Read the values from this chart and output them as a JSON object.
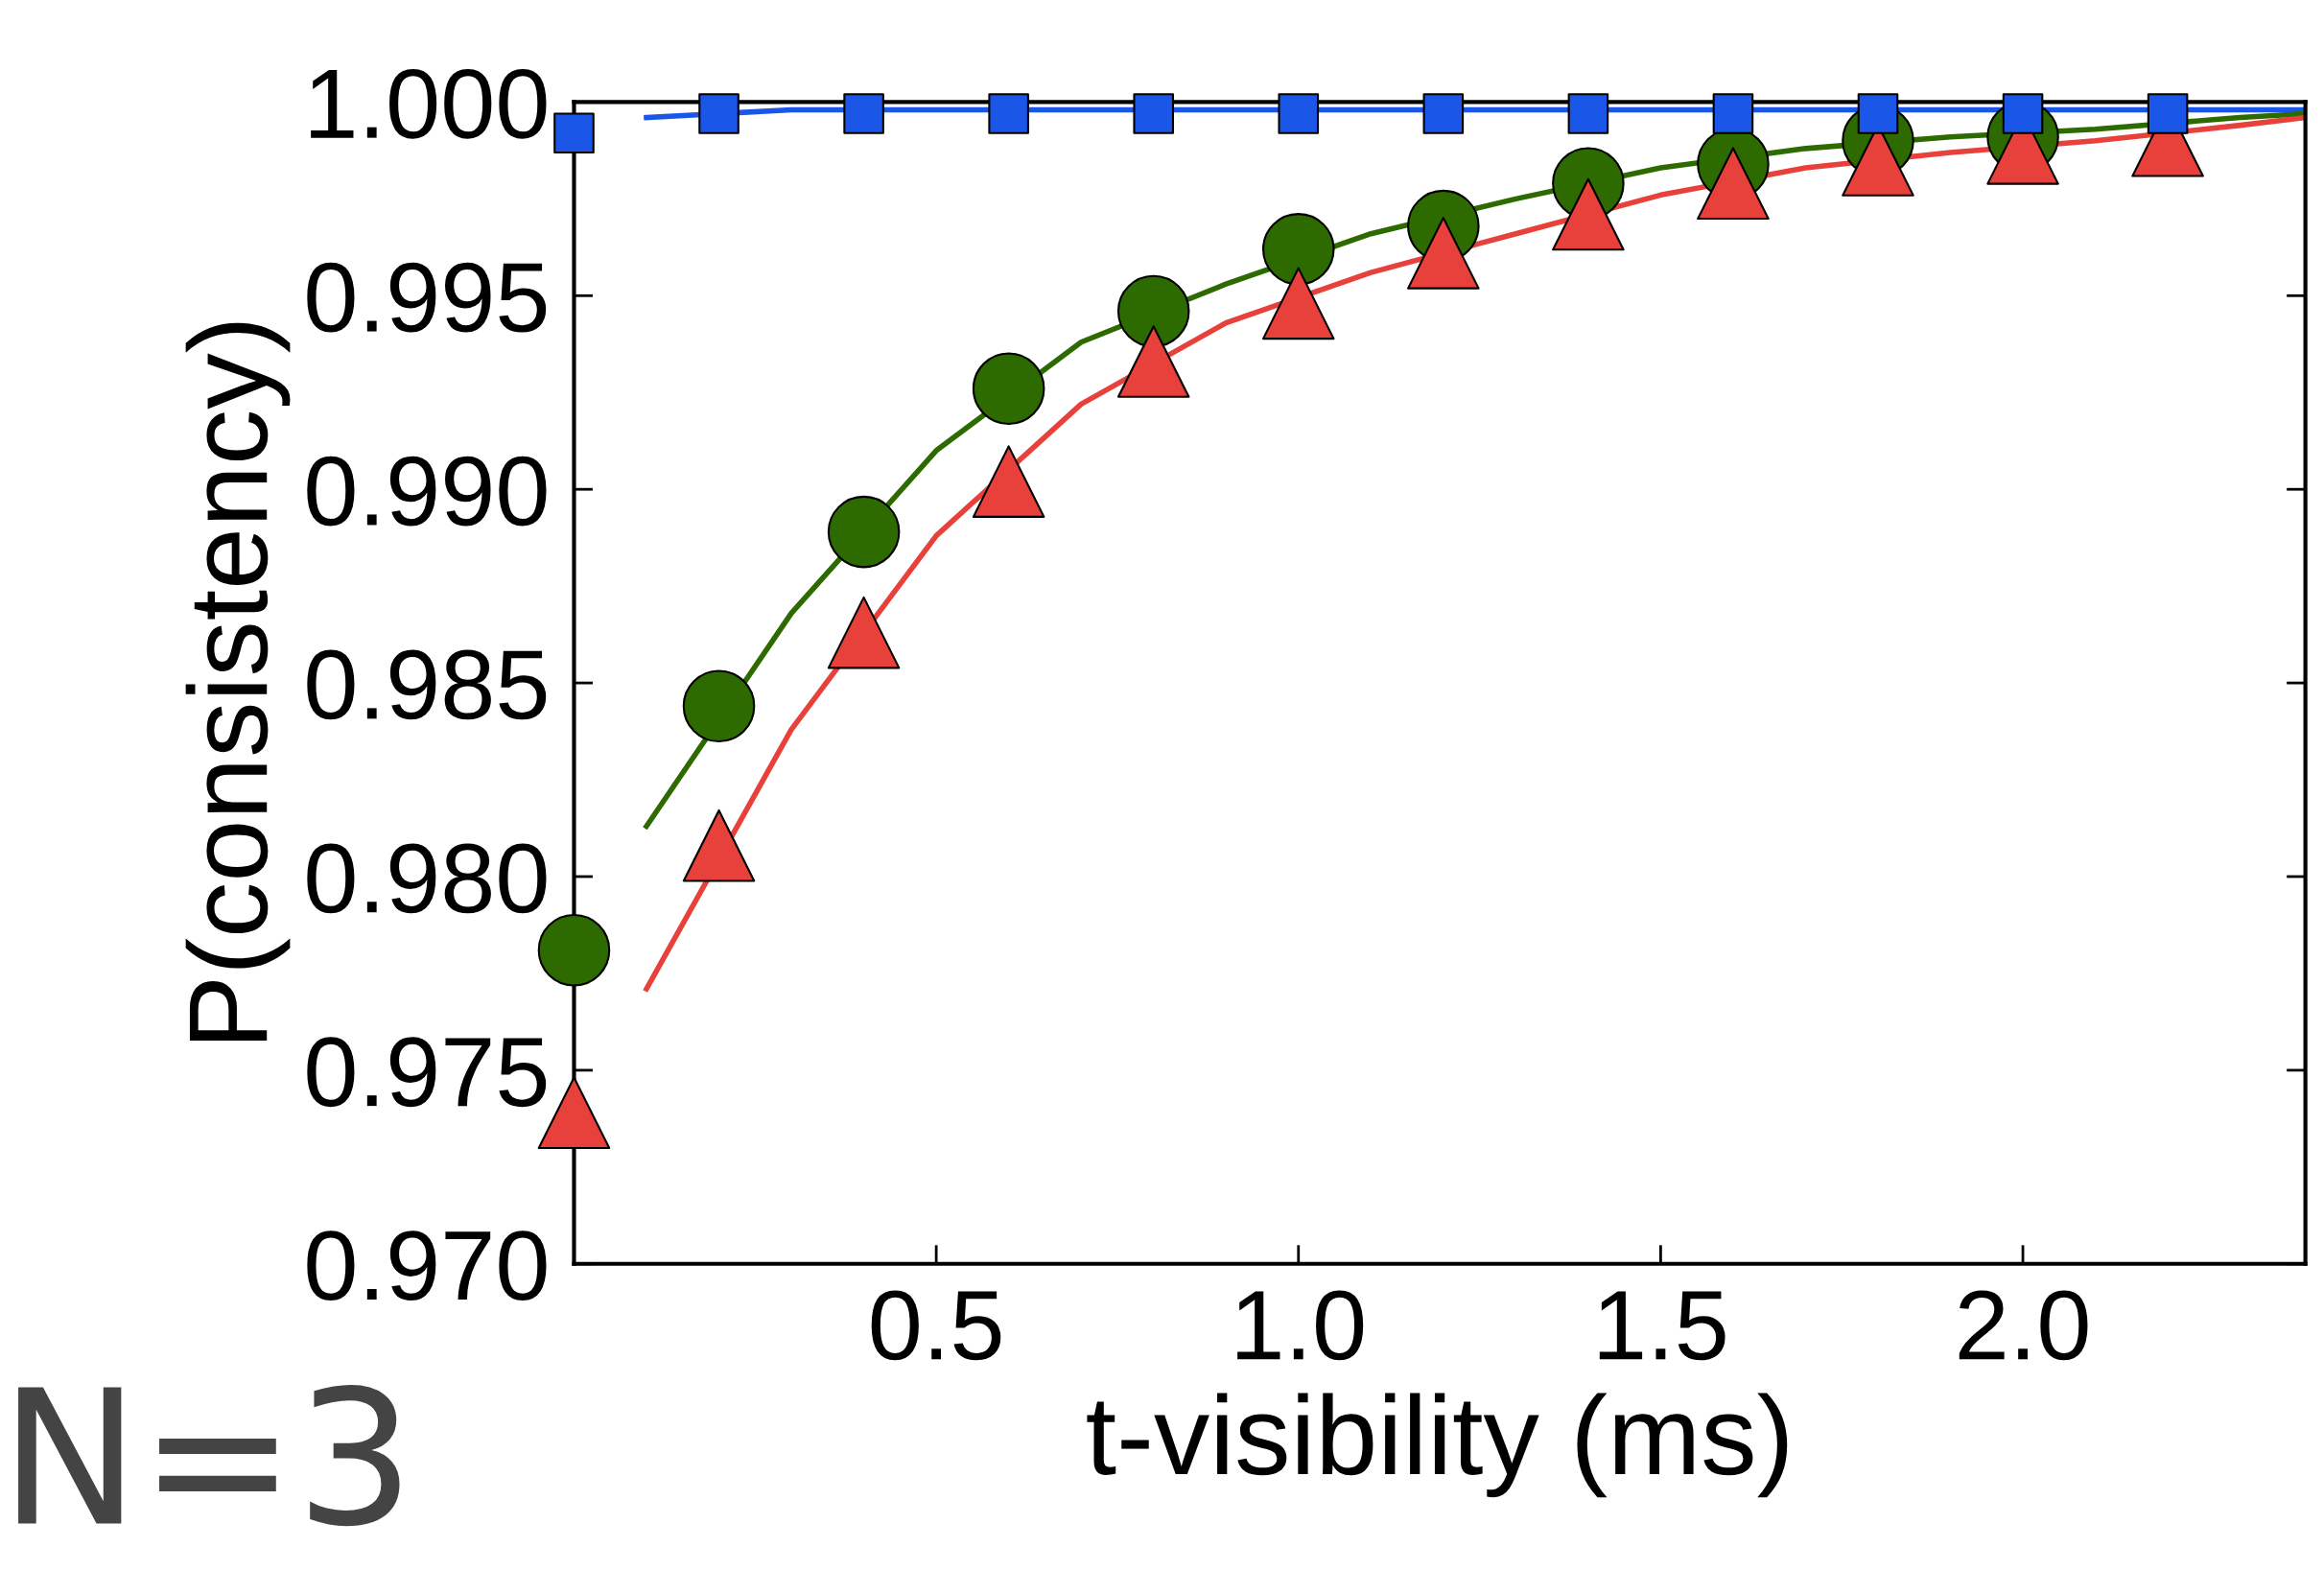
{
  "chart_data": {
    "type": "line",
    "xlabel": "t-visibility (ms)",
    "ylabel": "P(consistency)",
    "annotations": [
      "N=3"
    ],
    "x": [
      0.1,
      0.3,
      0.5,
      0.7,
      0.9,
      1.1,
      1.3,
      1.5,
      1.7,
      1.9,
      2.1,
      2.3,
      2.39
    ],
    "series": [
      {
        "color": "#1a56e8",
        "values": [
          0.9996,
          0.9998,
          0.9998,
          0.9998,
          0.9998,
          0.9998,
          0.9998,
          0.9998,
          0.9998,
          0.9998,
          0.9998,
          0.9998,
          0.9998
        ]
      },
      {
        "color": "#2d6a00",
        "values": [
          0.9813,
          0.9868,
          0.991,
          0.9938,
          0.9953,
          0.9966,
          0.9975,
          0.9983,
          0.9988,
          0.9991,
          0.9993,
          0.9996,
          0.9997
        ]
      },
      {
        "color": "#e8403a",
        "values": [
          0.9771,
          0.9838,
          0.9888,
          0.9922,
          0.9943,
          0.9956,
          0.9966,
          0.9976,
          0.9983,
          0.9987,
          0.999,
          0.9994,
          0.9996
        ]
      },
      {
        "type": "scatter",
        "color": "#1a56e8",
        "marker": "square",
        "x": [
          0,
          0.2,
          0.4,
          0.6,
          0.8,
          1.0,
          1.2,
          1.4,
          1.6,
          1.8,
          2.0,
          2.2
        ],
        "values": [
          0.9992,
          0.9997,
          0.9997,
          0.9997,
          0.9997,
          0.9997,
          0.9997,
          0.9997,
          0.9997,
          0.9997,
          0.9997,
          0.9997
        ]
      },
      {
        "type": "scatter",
        "color": "#2d6a00",
        "marker": "circle",
        "x": [
          0,
          0.2,
          0.4,
          0.6,
          0.8,
          1.0,
          1.2,
          1.4,
          1.6,
          1.8,
          2.0
        ],
        "values": [
          0.9781,
          0.9844,
          0.9889,
          0.9926,
          0.9946,
          0.9962,
          0.9968,
          0.9979,
          0.9984,
          0.999,
          0.9991
        ]
      },
      {
        "type": "scatter",
        "color": "#e8403a",
        "marker": "triangle",
        "x": [
          0,
          0.2,
          0.4,
          0.6,
          0.8,
          1.0,
          1.2,
          1.4,
          1.6,
          1.8,
          2.0,
          2.2
        ],
        "values": [
          0.9739,
          0.9808,
          0.9863,
          0.9902,
          0.9933,
          0.9948,
          0.9961,
          0.9971,
          0.9979,
          0.9985,
          0.9988,
          0.999
        ]
      }
    ],
    "xlim": [
      0,
      2.39
    ],
    "xticks": [
      0.5,
      {
        "value": 1.0,
        "label": "1.0"
      },
      1.5,
      {
        "value": 2.0,
        "label": "2.0"
      }
    ],
    "ylim": [
      0.97,
      1.0
    ],
    "yticks": [
      {
        "value": 0.97,
        "label": "0.970"
      },
      {
        "value": 0.975,
        "label": "0.975"
      },
      {
        "value": 0.98,
        "label": "0.980"
      },
      {
        "value": 0.985,
        "label": "0.985"
      },
      {
        "value": 0.99,
        "label": "0.990"
      },
      {
        "value": 0.995,
        "label": "0.995"
      },
      {
        "value": 1.0,
        "label": "1.000"
      }
    ],
    "grid": false,
    "legend": false,
    "line_style": "solid"
  }
}
